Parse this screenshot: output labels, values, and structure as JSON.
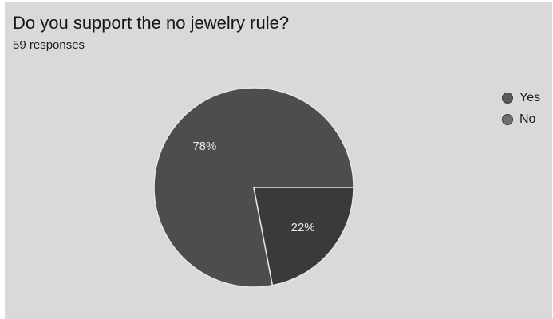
{
  "chart_data": {
    "type": "pie",
    "title": "Do you support the no jewelry rule?",
    "subtitle": "59 responses",
    "categories": [
      "Yes",
      "No"
    ],
    "values": [
      78,
      22
    ],
    "labels": [
      "78%",
      "22%"
    ],
    "colors": [
      "#4d4d4d",
      "#3a3a3a"
    ],
    "legend_colors": [
      "#5a5a5a",
      "#6e6e6e"
    ],
    "legend_position": "right"
  }
}
